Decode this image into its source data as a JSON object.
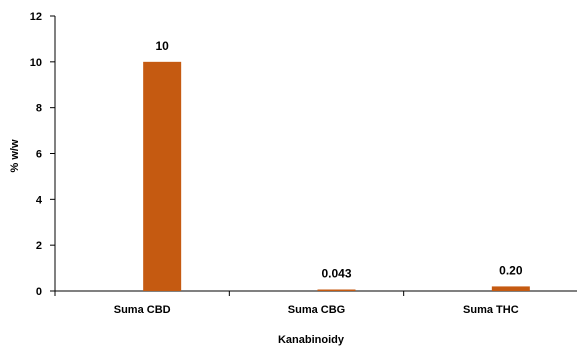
{
  "chart_data": {
    "type": "bar",
    "categories": [
      "Suma CBD",
      "Suma CBG",
      "Suma THC"
    ],
    "values": [
      10,
      0.043,
      0.2
    ],
    "data_labels": [
      "10",
      "0.043",
      "0.20"
    ],
    "ylim": [
      0,
      12
    ],
    "yticks": [
      "0",
      "2",
      "4",
      "6",
      "8",
      "10",
      "12"
    ],
    "ylabel": "% w/w",
    "xlabel": "Kanabinoidy",
    "bar_color": "#C55A11",
    "grid": false,
    "legend": "none"
  }
}
